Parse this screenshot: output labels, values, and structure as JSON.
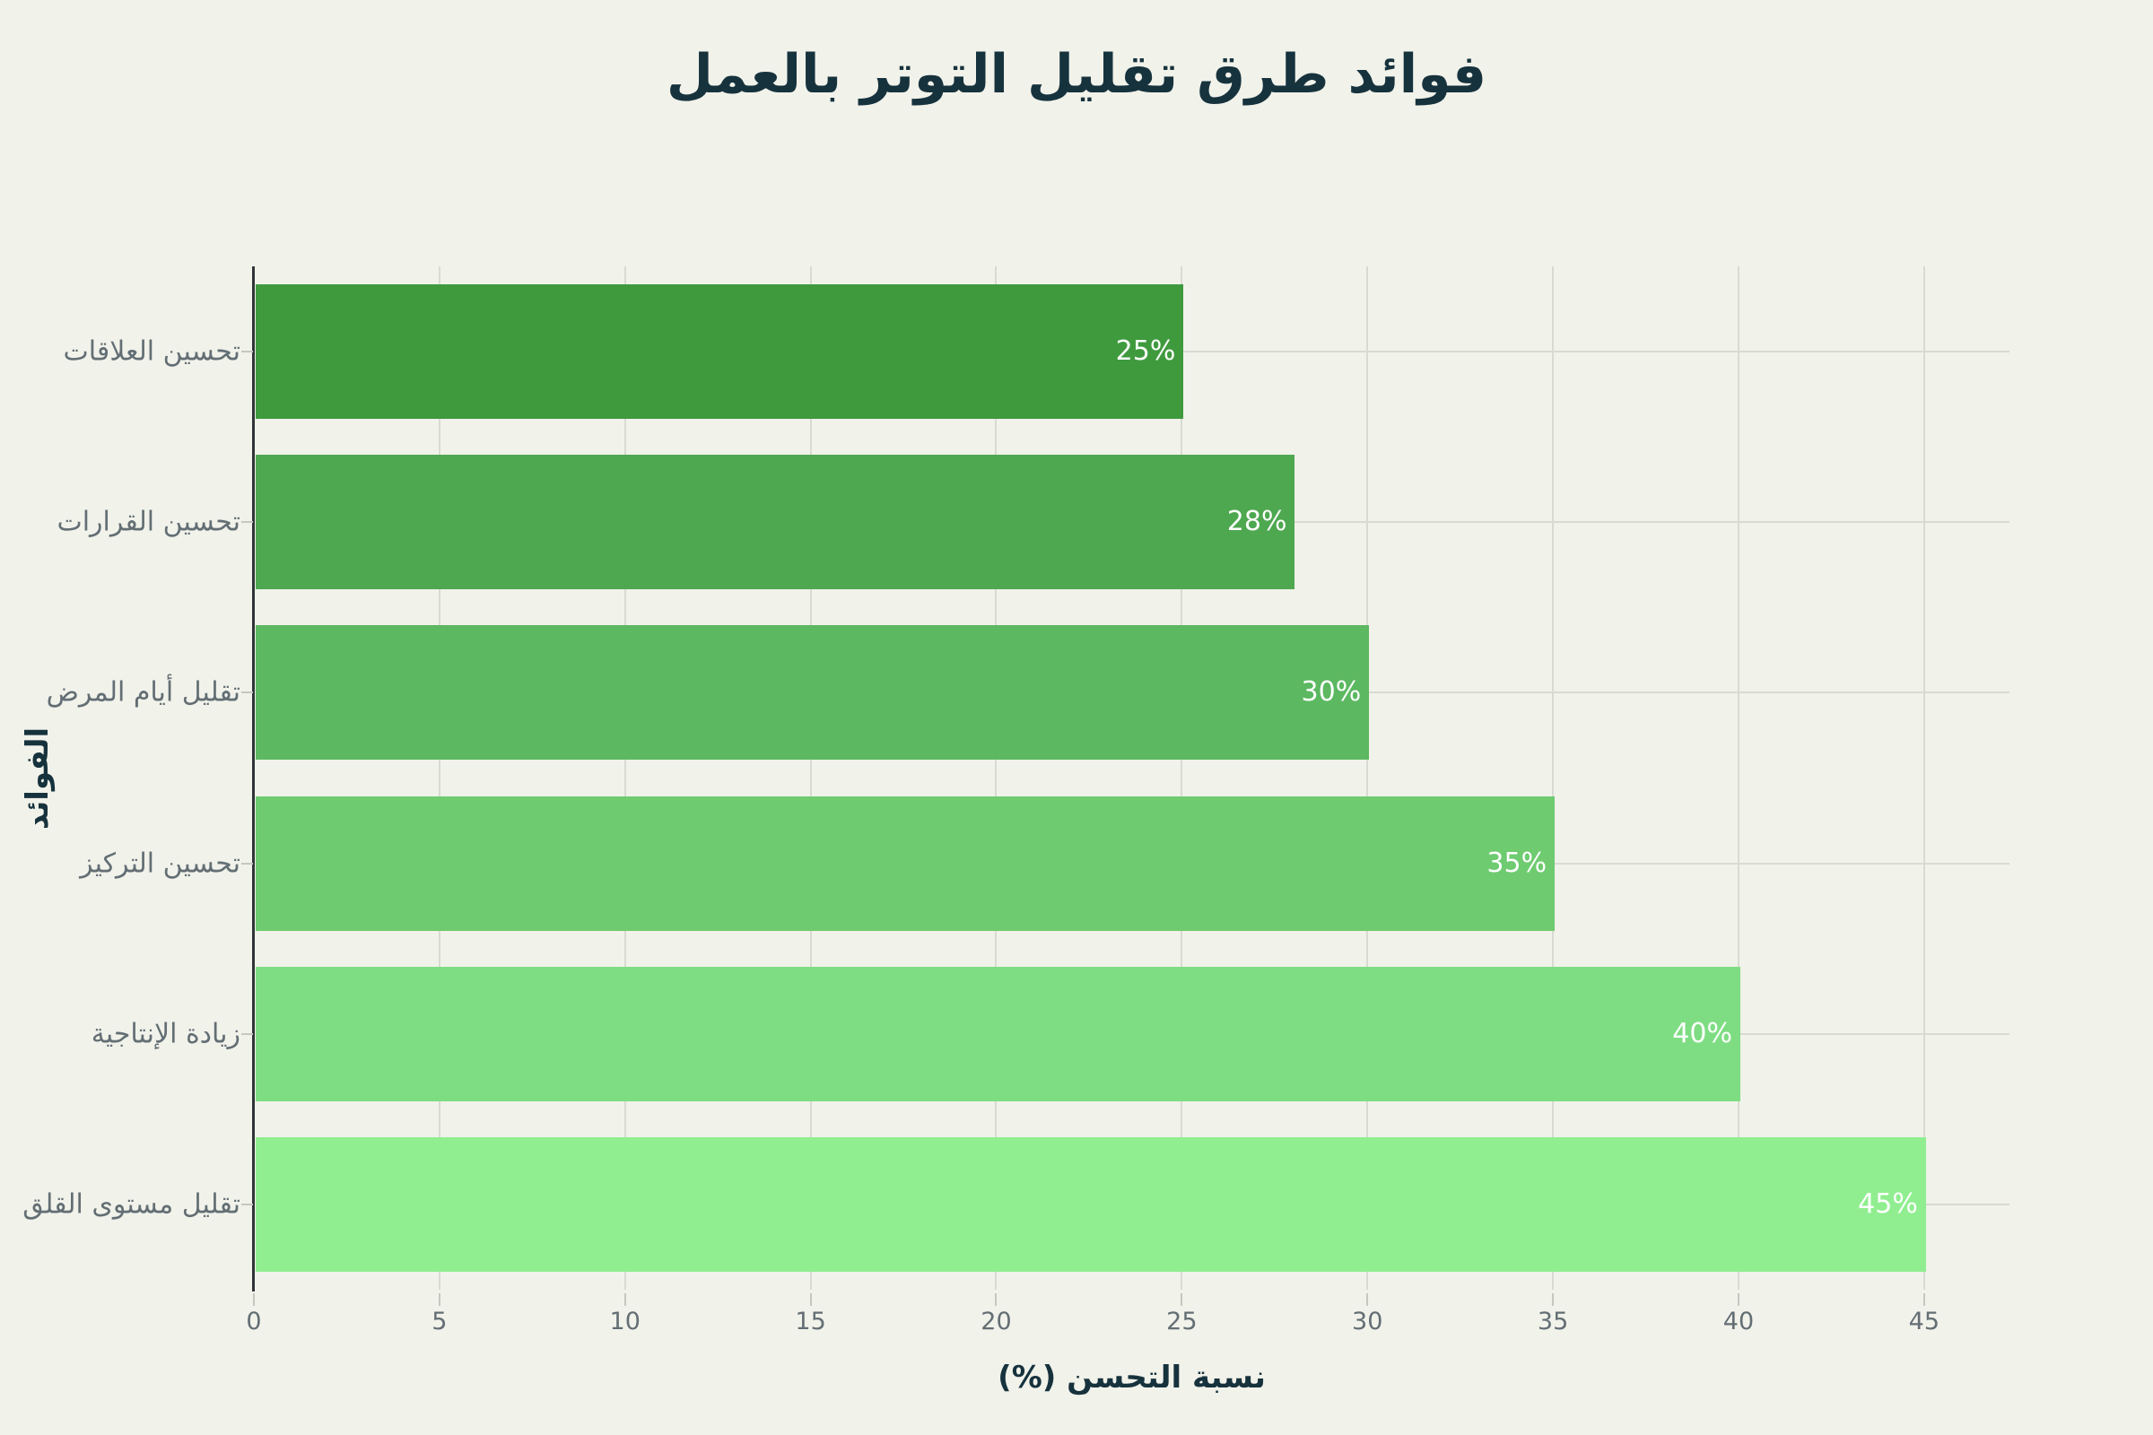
{
  "chart_data": {
    "type": "bar",
    "orientation": "horizontal",
    "title": "فوائد طرق تقليل التوتر بالعمل",
    "xlabel": "نسبة التحسن (%)",
    "ylabel": "الفوائد",
    "categories": [
      "تحسين العلاقات",
      "تحسين القرارات",
      "تقليل أيام المرض",
      "تحسين التركيز",
      "زيادة الإنتاجية",
      "تقليل مستوى القلق"
    ],
    "values": [
      25,
      28,
      30,
      35,
      40,
      45
    ],
    "value_labels": [
      "25%",
      "28%",
      "30%",
      "35%",
      "40%",
      "45%"
    ],
    "bar_colors": [
      "#3f9a3e",
      "#4ea850",
      "#5cb861",
      "#6ecb70",
      "#7edd82",
      "#90ee90"
    ],
    "xticks": [
      0,
      5,
      10,
      15,
      20,
      25,
      30,
      35,
      40,
      45
    ],
    "xtick_labels": [
      "0",
      "5",
      "10",
      "15",
      "20",
      "25",
      "30",
      "35",
      "40",
      "45"
    ],
    "xlim": [
      0,
      47.3
    ],
    "grid": true,
    "legend": false
  },
  "colors": {
    "background": "#f1f2ea",
    "title_text": "#16323d",
    "axis_title_text": "#16323d",
    "tick_label_text": "#636e74",
    "category_label_text": "#636e74",
    "bar_value_text": "#ffffff",
    "grid_line": "#d9dad2",
    "axis_line": "#2f3437",
    "tick_mark": "#c6c8c0"
  }
}
